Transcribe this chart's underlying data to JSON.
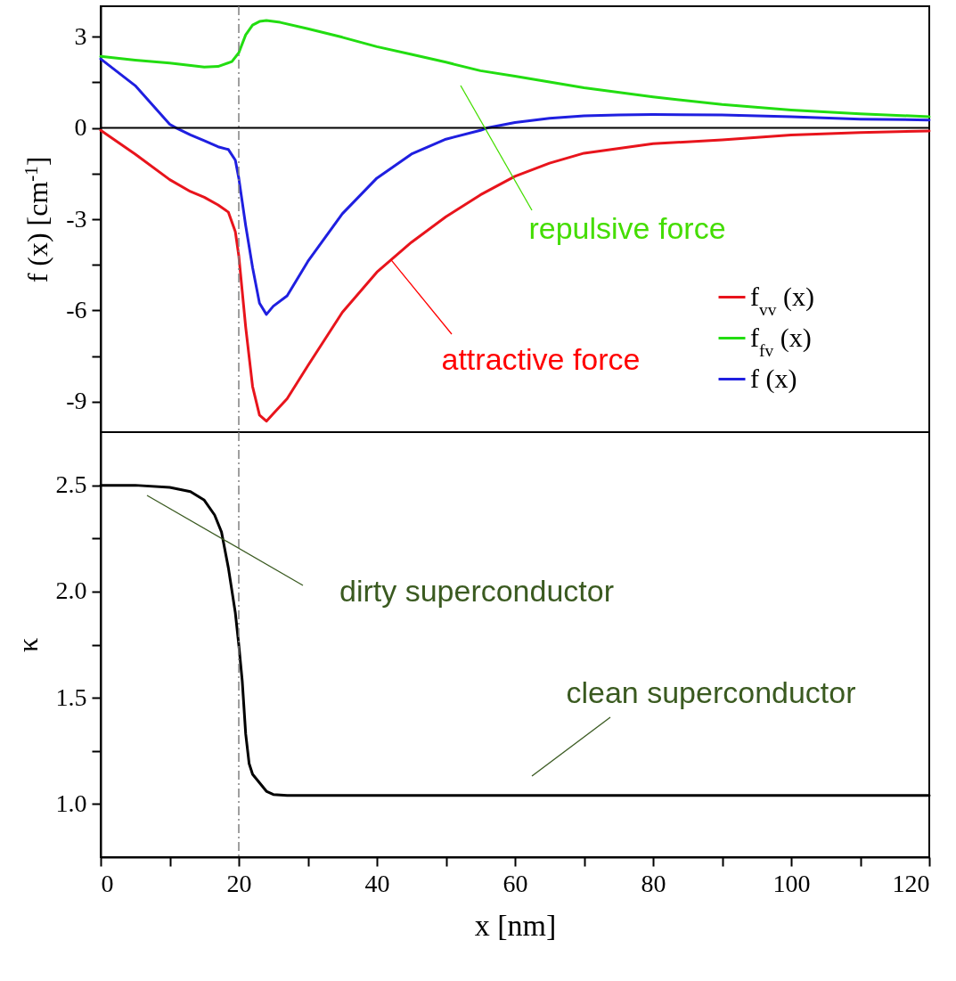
{
  "chart_data": [
    {
      "type": "line",
      "ylabel": "f (x) [cm$^{-1}$]",
      "xlim": [
        0,
        120
      ],
      "ylim": [
        -10,
        4
      ],
      "xticks": [
        0,
        {
          "value": 10,
          "label": null
        },
        20,
        {
          "value": 30,
          "label": null
        },
        40,
        {
          "value": 50,
          "label": null
        },
        60,
        {
          "value": 70,
          "label": null
        },
        80,
        {
          "value": 90,
          "label": null
        },
        100,
        {
          "value": 110,
          "label": null
        },
        120
      ],
      "yticks": [
        -9,
        {
          "value": -7.5,
          "label": null
        },
        -6,
        {
          "value": -4.5,
          "label": null
        },
        -3,
        {
          "value": -1.5,
          "label": null
        },
        0,
        {
          "value": 1.5,
          "label": null
        },
        3
      ],
      "tick_labels": "y",
      "legend": "bottom right",
      "grid": false,
      "x": [
        0,
        5,
        10,
        13,
        15,
        17,
        18.5,
        19.5,
        20,
        21,
        22,
        23,
        24,
        25,
        27,
        30,
        35,
        40,
        45,
        50,
        55,
        60,
        65,
        70,
        80,
        90,
        100,
        110,
        120
      ],
      "series": [
        {
          "name": "f$_{vv}$ (x)",
          "color": "#e8141c",
          "values": [
            -0.08,
            -0.86,
            -1.7,
            -2.09,
            -2.28,
            -2.53,
            -2.77,
            -3.41,
            -4.2,
            -6.55,
            -8.5,
            -9.44,
            -9.64,
            -9.39,
            -8.9,
            -7.82,
            -6.06,
            -4.74,
            -3.76,
            -2.92,
            -2.2,
            -1.59,
            -1.16,
            -0.83,
            -0.52,
            -0.39,
            -0.23,
            -0.15,
            -0.1
          ]
        },
        {
          "name": "f$_{fv}$ (x)",
          "color": "#22dd11",
          "x": [
            0,
            5,
            10,
            15,
            17,
            19,
            20,
            21,
            22,
            23,
            24,
            26,
            30,
            35,
            40,
            45,
            50,
            55,
            60,
            70,
            80,
            90,
            100,
            110,
            120
          ],
          "values": [
            2.35,
            2.23,
            2.13,
            2.0,
            2.02,
            2.18,
            2.47,
            3.06,
            3.38,
            3.5,
            3.53,
            3.47,
            3.26,
            2.98,
            2.67,
            2.42,
            2.16,
            1.88,
            1.7,
            1.32,
            1.02,
            0.77,
            0.59,
            0.46,
            0.37
          ]
        },
        {
          "name": "f (x)",
          "color": "#1f1fe0",
          "x": [
            0,
            5,
            10,
            11,
            13,
            15,
            17,
            18.5,
            19.5,
            20,
            21,
            22,
            23,
            24,
            25,
            27,
            30,
            35,
            40,
            45,
            50,
            55,
            56,
            60,
            65,
            70,
            75,
            80,
            90,
            100,
            110,
            120
          ],
          "values": [
            2.27,
            1.39,
            0.12,
            -0.01,
            -0.23,
            -0.42,
            -0.62,
            -0.71,
            -1.06,
            -1.65,
            -3.21,
            -4.59,
            -5.76,
            -6.13,
            -5.86,
            -5.52,
            -4.39,
            -2.82,
            -1.65,
            -0.86,
            -0.37,
            -0.08,
            0,
            0.18,
            0.32,
            0.4,
            0.43,
            0.44,
            0.43,
            0.37,
            0.29,
            0.26
          ]
        }
      ],
      "ref_lines": [
        {
          "axis": "x",
          "value": 20,
          "color": "#808080",
          "line_style": "dashed"
        },
        {
          "axis": "y",
          "value": 0,
          "color": "#000000",
          "line_style": "solid"
        }
      ],
      "annotations": [
        "repulsive force",
        {
          "text": "attractive force",
          "x": 42,
          "y": -4.32
        }
      ]
    },
    {
      "type": "line",
      "xlabel": "x [nm]",
      "ylabel": "κ",
      "xlim": [
        0,
        120
      ],
      "ylim": [
        0.75,
        2.75
      ],
      "xticks": [
        0,
        {
          "value": 10,
          "label": null
        },
        20,
        {
          "value": 30,
          "label": null
        },
        40,
        {
          "value": 50,
          "label": null
        },
        60,
        {
          "value": 70,
          "label": null
        },
        80,
        {
          "value": 90,
          "label": null
        },
        100,
        {
          "value": 110,
          "label": null
        },
        120
      ],
      "yticks": [
        {
          "value": 1,
          "label": "1.0"
        },
        {
          "value": 1.25,
          "label": null
        },
        1.5,
        {
          "value": 1.75,
          "label": null
        },
        {
          "value": 2,
          "label": "2.0"
        },
        {
          "value": 2.25,
          "label": null
        },
        2.5
      ],
      "grid": false,
      "x": [
        0,
        5,
        10,
        13,
        15,
        16.5,
        17.5,
        18.5,
        19.5,
        20,
        20.5,
        21,
        21.5,
        22,
        23,
        24,
        25,
        27,
        30,
        60,
        90,
        120
      ],
      "series": [
        {
          "color": "#000000",
          "values": [
            2.5,
            2.5,
            2.49,
            2.47,
            2.43,
            2.36,
            2.28,
            2.11,
            1.9,
            1.75,
            1.58,
            1.33,
            1.19,
            1.14,
            1.1,
            1.06,
            1.045,
            1.04,
            1.04,
            1.04,
            1.04,
            1.04
          ]
        }
      ],
      "ref_lines": [
        {
          "axis": "x",
          "value": 20,
          "color": "#808080",
          "line_style": "dashed"
        }
      ],
      "annotations": [
        "dirty superconductor",
        "clean superconductor"
      ]
    }
  ]
}
